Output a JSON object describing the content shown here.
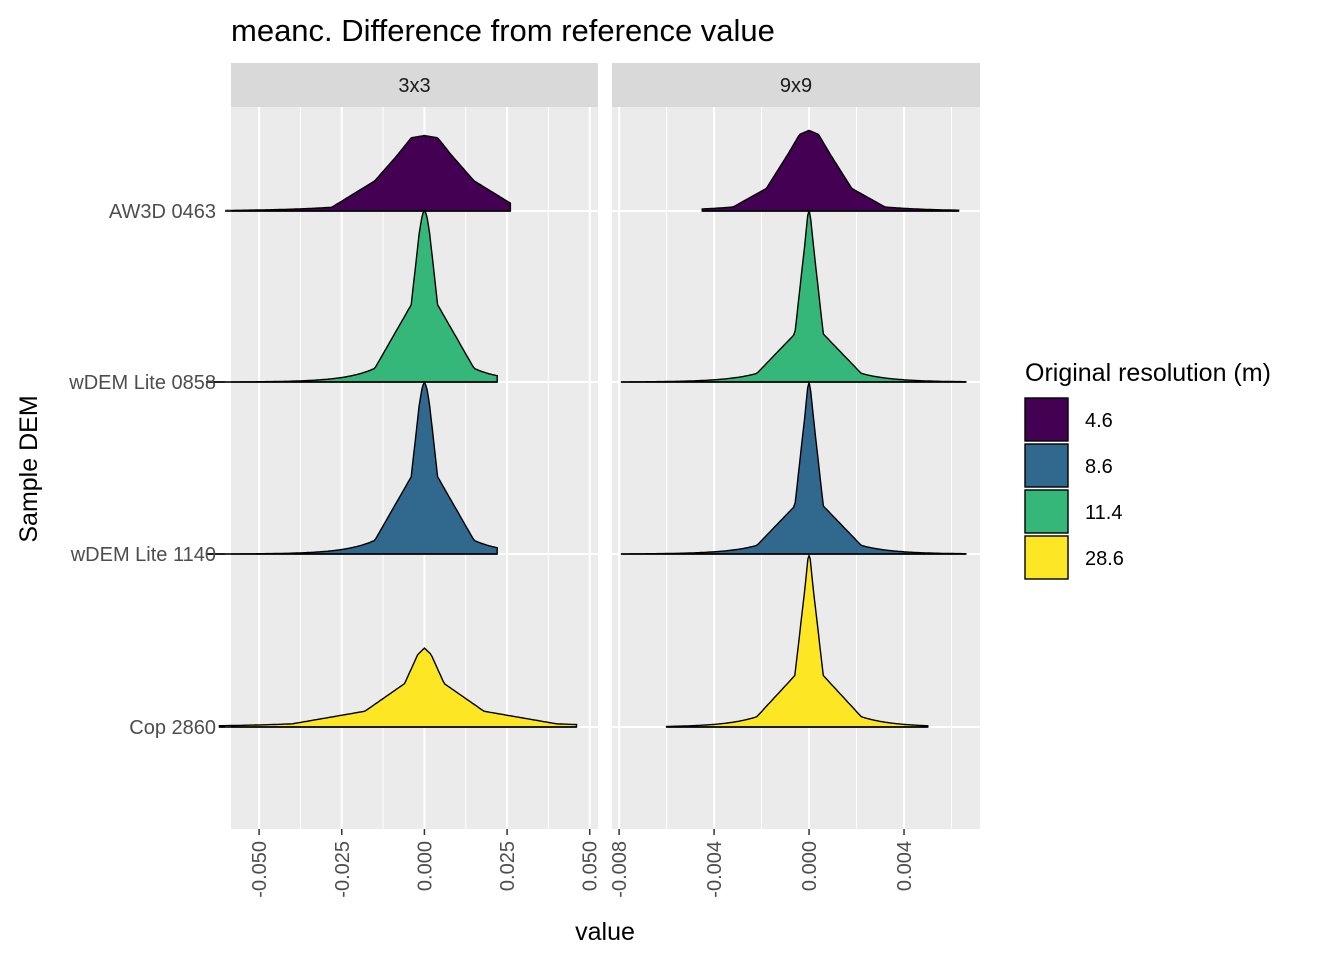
{
  "chart_data": {
    "type": "ridgeline",
    "title": "meanc. Difference from reference value",
    "xlabel": "value",
    "ylabel": "Sample DEM",
    "grid": true,
    "legend": {
      "title": "Original resolution (m)",
      "placement": "right",
      "entries": [
        {
          "label": "4.6",
          "color": "#440154"
        },
        {
          "label": "8.6",
          "color": "#31688E"
        },
        {
          "label": "11.4",
          "color": "#35B779"
        },
        {
          "label": "28.6",
          "color": "#FDE725"
        }
      ]
    },
    "categories": [
      "AW3D 0463",
      "wDEM Lite 0858",
      "wDEM Lite 1140",
      "Cop 2860"
    ],
    "category_colors": [
      "#440154",
      "#35B779",
      "#31688E",
      "#FDE725"
    ],
    "facets": [
      {
        "label": "3x3",
        "xlim": [
          -0.0585,
          0.0525
        ],
        "ticks": [
          -0.05,
          -0.025,
          0.0,
          0.025,
          0.05
        ],
        "tick_labels": [
          "-0.050",
          "-0.025",
          "0.000",
          "0.025",
          "0.050"
        ],
        "series": [
          {
            "category": "AW3D 0463",
            "range": [
              -0.06,
              0.026
            ],
            "peak": 0.0,
            "peak_height": 0.44,
            "shape": [
              [
                0.004,
                0.03
              ],
              [
                0.008,
                0.25
              ],
              [
                0.015,
                0.6
              ],
              [
                0.028,
                0.95
              ]
            ]
          },
          {
            "category": "wDEM Lite 0858",
            "range": [
              -0.066,
              0.022
            ],
            "peak": 0.0,
            "peak_height": 1.0,
            "shape": [
              [
                0.0006,
                0.02
              ],
              [
                0.0015,
                0.12
              ],
              [
                0.004,
                0.55
              ],
              [
                0.015,
                0.92
              ]
            ]
          },
          {
            "category": "wDEM Lite 1140",
            "range": [
              -0.066,
              0.022
            ],
            "peak": 0.0,
            "peak_height": 1.0,
            "shape": [
              [
                0.0006,
                0.02
              ],
              [
                0.0015,
                0.12
              ],
              [
                0.004,
                0.55
              ],
              [
                0.015,
                0.92
              ]
            ]
          },
          {
            "category": "Cop 2860",
            "range": [
              -0.062,
              0.046
            ],
            "peak": 0.0,
            "peak_height": 0.46,
            "shape": [
              [
                0.002,
                0.08
              ],
              [
                0.006,
                0.45
              ],
              [
                0.018,
                0.8
              ],
              [
                0.04,
                0.96
              ]
            ]
          }
        ]
      },
      {
        "label": "9x9",
        "xlim": [
          -0.0083,
          0.0072
        ],
        "ticks": [
          -0.008,
          -0.004,
          0.0,
          0.004
        ],
        "tick_labels": [
          "-0.008",
          "-0.004",
          "0.000",
          "0.004"
        ],
        "series": [
          {
            "category": "AW3D 0463",
            "range": [
              -0.0045,
              0.0063
            ],
            "peak": 0.0,
            "peak_height": 0.47,
            "shape": [
              [
                0.0004,
                0.05
              ],
              [
                0.0009,
                0.3
              ],
              [
                0.0018,
                0.72
              ],
              [
                0.0032,
                0.95
              ]
            ]
          },
          {
            "category": "wDEM Lite 0858",
            "range": [
              -0.0079,
              0.0066
            ],
            "peak": 0.0,
            "peak_height": 1.0,
            "shape": [
              [
                5e-05,
                0.02
              ],
              [
                0.00018,
                0.2
              ],
              [
                0.0006,
                0.72
              ],
              [
                0.0022,
                0.95
              ]
            ]
          },
          {
            "category": "wDEM Lite 1140",
            "range": [
              -0.0079,
              0.0066
            ],
            "peak": 0.0,
            "peak_height": 1.0,
            "shape": [
              [
                5e-05,
                0.02
              ],
              [
                0.00018,
                0.2
              ],
              [
                0.0006,
                0.72
              ],
              [
                0.0022,
                0.95
              ]
            ]
          },
          {
            "category": "Cop 2860",
            "range": [
              -0.006,
              0.005
            ],
            "peak": 0.0,
            "peak_height": 1.0,
            "shape": [
              [
                5e-05,
                0.02
              ],
              [
                0.00018,
                0.2
              ],
              [
                0.0006,
                0.7
              ],
              [
                0.0022,
                0.94
              ]
            ]
          }
        ]
      }
    ]
  }
}
